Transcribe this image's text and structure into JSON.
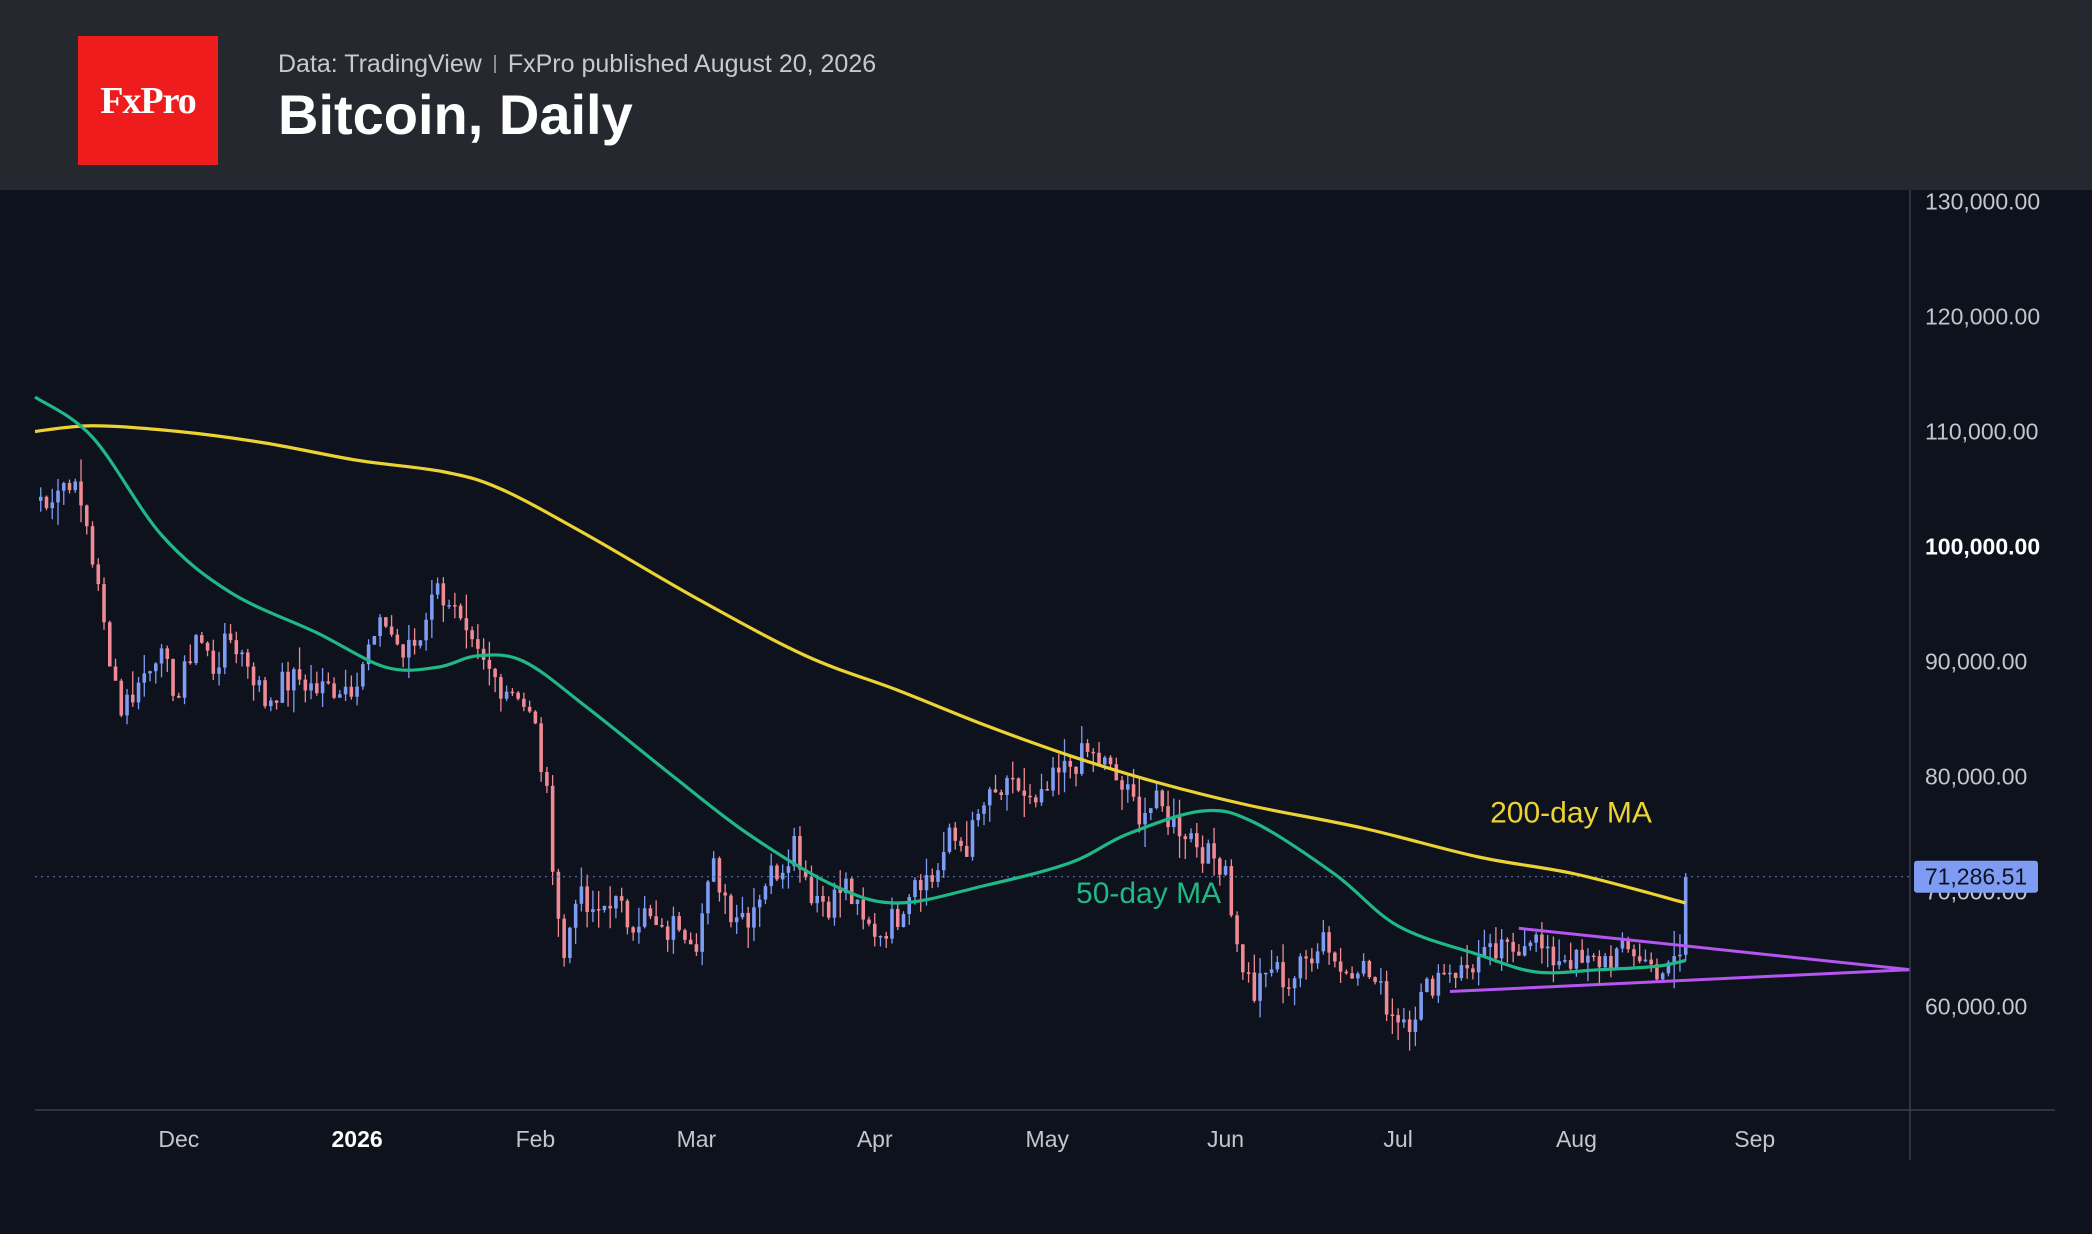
{
  "header": {
    "logo_text": "FxPro",
    "source_label": "Data: TradingView",
    "published_label": "FxPro published August 20, 2026",
    "title": "Bitcoin, Daily"
  },
  "chart_data": {
    "type": "candlestick",
    "title": "Bitcoin, Daily",
    "x_tick_labels": [
      "Dec",
      "2026",
      "Feb",
      "Mar",
      "Apr",
      "May",
      "Jun",
      "Jul",
      "Aug",
      "Sep"
    ],
    "x_tick_dates": [
      "2025-12-01",
      "2026-01-01",
      "2026-02-01",
      "2026-03-01",
      "2026-04-01",
      "2026-05-01",
      "2026-06-01",
      "2026-07-01",
      "2026-08-01",
      "2026-09-01"
    ],
    "y_tick_labels": [
      "130,000.00",
      "120,000.00",
      "110,000.00",
      "100,000.00",
      "90,000.00",
      "80,000.00",
      "70,000.00",
      "60,000.00"
    ],
    "y_tick_values": [
      130000,
      120000,
      110000,
      100000,
      90000,
      80000,
      70000,
      60000
    ],
    "y_range": [
      51000,
      131000
    ],
    "x_range": [
      "2025-11-06",
      "2026-09-28"
    ],
    "last_price": 71286.51,
    "last_price_label": "71,286.51",
    "grid": false,
    "colors": {
      "up": "#7f9cf5",
      "down": "#f08a94",
      "ma50": "#1fb886",
      "ma200": "#ecd333",
      "triangle": "#b456ef",
      "price_tag": "#7f9cf5"
    },
    "price_anchors": [
      [
        "2025-11-06",
        104000
      ],
      [
        "2025-11-09",
        104500
      ],
      [
        "2025-11-12",
        106000
      ],
      [
        "2025-11-15",
        102000
      ],
      [
        "2025-11-18",
        93000
      ],
      [
        "2025-11-21",
        86000
      ],
      [
        "2025-11-24",
        88000
      ],
      [
        "2025-11-27",
        91000
      ],
      [
        "2025-12-01",
        87000
      ],
      [
        "2025-12-04",
        92500
      ],
      [
        "2025-12-07",
        89500
      ],
      [
        "2025-12-10",
        92000
      ],
      [
        "2025-12-13",
        90000
      ],
      [
        "2025-12-16",
        86500
      ],
      [
        "2025-12-19",
        88000
      ],
      [
        "2025-12-22",
        88500
      ],
      [
        "2025-12-25",
        87500
      ],
      [
        "2025-12-28",
        87800
      ],
      [
        "2025-12-31",
        88000
      ],
      [
        "2026-01-03",
        91000
      ],
      [
        "2026-01-06",
        93500
      ],
      [
        "2026-01-09",
        90500
      ],
      [
        "2026-01-12",
        92000
      ],
      [
        "2026-01-14",
        96500
      ],
      [
        "2026-01-17",
        95500
      ],
      [
        "2026-01-20",
        91500
      ],
      [
        "2026-01-23",
        89500
      ],
      [
        "2026-01-26",
        88000
      ],
      [
        "2026-01-29",
        87500
      ],
      [
        "2026-02-01",
        84000
      ],
      [
        "2026-02-03",
        78000
      ],
      [
        "2026-02-05",
        68000
      ],
      [
        "2026-02-06",
        64000
      ],
      [
        "2026-02-08",
        70000
      ],
      [
        "2026-02-11",
        67500
      ],
      [
        "2026-02-14",
        69500
      ],
      [
        "2026-02-17",
        67500
      ],
      [
        "2026-02-20",
        68000
      ],
      [
        "2026-02-23",
        66000
      ],
      [
        "2026-02-26",
        67500
      ],
      [
        "2026-03-01",
        66000
      ],
      [
        "2026-03-04",
        72000
      ],
      [
        "2026-03-07",
        68500
      ],
      [
        "2026-03-10",
        68000
      ],
      [
        "2026-03-13",
        71000
      ],
      [
        "2026-03-16",
        72500
      ],
      [
        "2026-03-18",
        74500
      ],
      [
        "2026-03-21",
        70000
      ],
      [
        "2026-03-24",
        69000
      ],
      [
        "2026-03-27",
        70500
      ],
      [
        "2026-03-30",
        67000
      ],
      [
        "2026-04-02",
        66500
      ],
      [
        "2026-04-05",
        68000
      ],
      [
        "2026-04-08",
        71500
      ],
      [
        "2026-04-11",
        71000
      ],
      [
        "2026-04-14",
        74500
      ],
      [
        "2026-04-17",
        74000
      ],
      [
        "2026-04-20",
        77500
      ],
      [
        "2026-04-23",
        78500
      ],
      [
        "2026-04-26",
        79000
      ],
      [
        "2026-04-29",
        77000
      ],
      [
        "2026-05-02",
        79500
      ],
      [
        "2026-05-05",
        81000
      ],
      [
        "2026-05-08",
        82000
      ],
      [
        "2026-05-11",
        81000
      ],
      [
        "2026-05-14",
        79000
      ],
      [
        "2026-05-17",
        77000
      ],
      [
        "2026-05-20",
        77500
      ],
      [
        "2026-05-23",
        76000
      ],
      [
        "2026-05-26",
        75000
      ],
      [
        "2026-05-29",
        73000
      ],
      [
        "2026-06-01",
        72500
      ],
      [
        "2026-06-03",
        65000
      ],
      [
        "2026-06-06",
        61000
      ],
      [
        "2026-06-09",
        63500
      ],
      [
        "2026-06-12",
        62000
      ],
      [
        "2026-06-15",
        64000
      ],
      [
        "2026-06-18",
        66500
      ],
      [
        "2026-06-21",
        63000
      ],
      [
        "2026-06-24",
        64000
      ],
      [
        "2026-06-27",
        62000
      ],
      [
        "2026-06-30",
        59500
      ],
      [
        "2026-07-03",
        59000
      ],
      [
        "2026-07-06",
        61500
      ],
      [
        "2026-07-09",
        63500
      ],
      [
        "2026-07-12",
        63000
      ],
      [
        "2026-07-15",
        64000
      ],
      [
        "2026-07-18",
        64500
      ],
      [
        "2026-07-21",
        65000
      ],
      [
        "2026-07-24",
        66500
      ],
      [
        "2026-07-27",
        64000
      ],
      [
        "2026-07-30",
        64500
      ],
      [
        "2026-08-02",
        63500
      ],
      [
        "2026-08-05",
        64000
      ],
      [
        "2026-08-08",
        64500
      ],
      [
        "2026-08-11",
        64800
      ],
      [
        "2026-08-14",
        63500
      ],
      [
        "2026-08-17",
        63000
      ],
      [
        "2026-08-19",
        64500
      ],
      [
        "2026-08-20",
        71286
      ]
    ],
    "series": [
      {
        "name": "200-day MA",
        "points": [
          [
            "2025-11-06",
            110000
          ],
          [
            "2025-11-16",
            110500
          ],
          [
            "2025-12-01",
            110000
          ],
          [
            "2025-12-16",
            109000
          ],
          [
            "2026-01-01",
            107500
          ],
          [
            "2026-01-16",
            106500
          ],
          [
            "2026-01-26",
            105000
          ],
          [
            "2026-02-10",
            101000
          ],
          [
            "2026-03-01",
            95500
          ],
          [
            "2026-03-20",
            90500
          ],
          [
            "2026-04-05",
            87500
          ],
          [
            "2026-04-20",
            84500
          ],
          [
            "2026-05-05",
            81800
          ],
          [
            "2026-05-20",
            79500
          ],
          [
            "2026-06-05",
            77500
          ],
          [
            "2026-06-25",
            75500
          ],
          [
            "2026-07-15",
            73000
          ],
          [
            "2026-08-01",
            71500
          ],
          [
            "2026-08-20",
            69000
          ]
        ]
      },
      {
        "name": "50-day MA",
        "points": [
          [
            "2025-11-06",
            113000
          ],
          [
            "2025-11-16",
            109500
          ],
          [
            "2025-11-28",
            101000
          ],
          [
            "2025-12-10",
            96000
          ],
          [
            "2025-12-25",
            92500
          ],
          [
            "2026-01-06",
            89500
          ],
          [
            "2026-01-15",
            89500
          ],
          [
            "2026-01-22",
            90500
          ],
          [
            "2026-01-30",
            90000
          ],
          [
            "2026-02-10",
            86000
          ],
          [
            "2026-02-25",
            80000
          ],
          [
            "2026-03-10",
            75000
          ],
          [
            "2026-03-25",
            70500
          ],
          [
            "2026-04-05",
            69000
          ],
          [
            "2026-04-20",
            70500
          ],
          [
            "2026-05-05",
            72500
          ],
          [
            "2026-05-15",
            75000
          ],
          [
            "2026-05-28",
            77000
          ],
          [
            "2026-06-06",
            76000
          ],
          [
            "2026-06-20",
            71500
          ],
          [
            "2026-07-01",
            67000
          ],
          [
            "2026-07-15",
            64500
          ],
          [
            "2026-07-25",
            63000
          ],
          [
            "2026-08-05",
            63200
          ],
          [
            "2026-08-15",
            63500
          ],
          [
            "2026-08-20",
            64000
          ]
        ]
      }
    ],
    "triangle": {
      "upper": [
        [
          "2026-07-22",
          66800
        ],
        [
          "2026-09-28",
          63200
        ]
      ],
      "lower": [
        [
          "2026-07-10",
          61300
        ],
        [
          "2026-09-28",
          63200
        ]
      ]
    },
    "annotations": [
      {
        "text": "200-day MA",
        "date": "2026-07-17",
        "value": 76000,
        "color": "#ecd333"
      },
      {
        "text": "50-day MA",
        "date": "2026-05-06",
        "value": 69000,
        "color": "#1fb886"
      }
    ]
  }
}
